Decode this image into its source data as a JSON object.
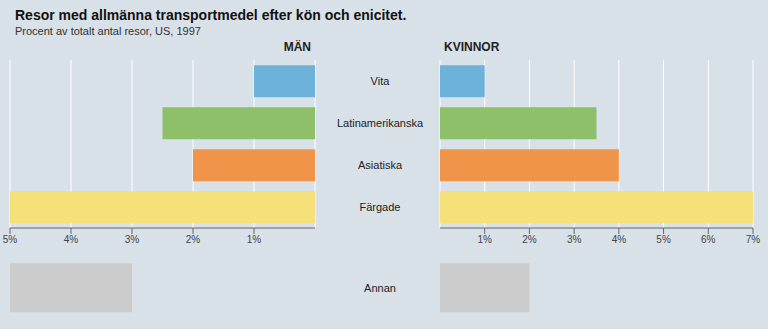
{
  "chart_data": [
    {
      "type": "bar",
      "orientation": "horizontal",
      "title": "Resor med allmänna transportmedel efter kön och enicitet.",
      "subtitle": "Procent av totalt antal resor, US, 1997",
      "background_color": "#d8e0e8",
      "grid_color": "#ffffff",
      "categories": [
        "Vita",
        "Latinamerikanska",
        "Asiatiska",
        "Färgade"
      ],
      "series": [
        {
          "name": "MÄN",
          "values": [
            1.0,
            2.5,
            2.0,
            5.0
          ]
        }
      ],
      "colors": [
        "#6db3d9",
        "#8dc068",
        "#f0944a",
        "#f5e07a"
      ],
      "xlim": [
        0,
        5
      ],
      "xticks": [
        {
          "value": 5,
          "label": "5%"
        },
        {
          "value": 4,
          "label": "4%"
        },
        {
          "value": 3,
          "label": "3%"
        },
        {
          "value": 2,
          "label": "2%"
        },
        {
          "value": 1,
          "label": "1%"
        }
      ],
      "grid": true,
      "annan": {
        "range": [
          3.0,
          5.0
        ],
        "color": "#cccccc"
      }
    },
    {
      "type": "bar",
      "orientation": "horizontal",
      "categories": [
        "Vita",
        "Latinamerikanska",
        "Asiatiska",
        "Färgade"
      ],
      "series": [
        {
          "name": "KVINNOR",
          "values": [
            1.0,
            3.5,
            4.0,
            7.0
          ]
        }
      ],
      "colors": [
        "#6db3d9",
        "#8dc068",
        "#f0944a",
        "#f5e07a"
      ],
      "xlim": [
        0,
        7
      ],
      "xticks": [
        {
          "value": 1,
          "label": "1%"
        },
        {
          "value": 2,
          "label": "2%"
        },
        {
          "value": 3,
          "label": "3%"
        },
        {
          "value": 4,
          "label": "4%"
        },
        {
          "value": 5,
          "label": "5%"
        },
        {
          "value": 6,
          "label": "6%"
        },
        {
          "value": 7,
          "label": "7%"
        }
      ],
      "grid": true,
      "annan": {
        "label": "Annan",
        "range": [
          0.0,
          2.0
        ],
        "color": "#cccccc"
      }
    }
  ]
}
